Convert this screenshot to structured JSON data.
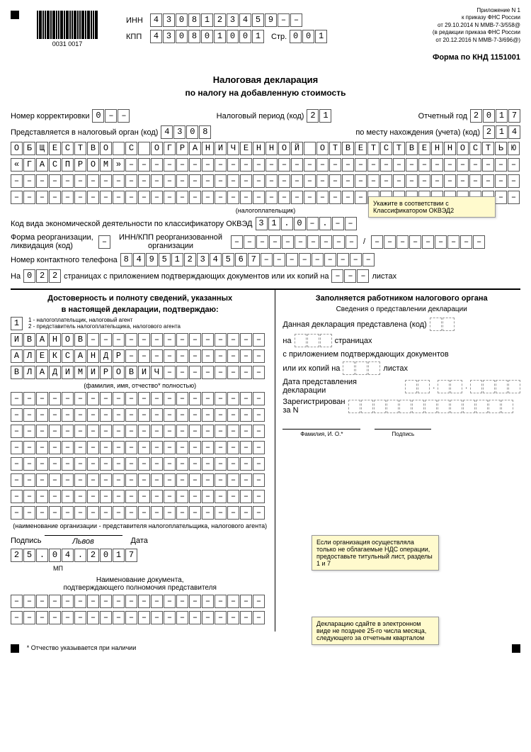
{
  "header": {
    "barcode_text": "0031  0017",
    "inn_label": "ИНН",
    "inn": [
      "4",
      "3",
      "0",
      "8",
      "1",
      "2",
      "3",
      "4",
      "5",
      "9",
      "–",
      "–"
    ],
    "kpp_label": "КПП",
    "kpp": [
      "4",
      "3",
      "0",
      "8",
      "0",
      "1",
      "0",
      "0",
      "1"
    ],
    "str_label": "Стр.",
    "str": [
      "0",
      "0",
      "1"
    ],
    "appendix": "Приложение N 1",
    "order1": "к приказу ФНС России",
    "order2": "от 29.10.2014 N ММВ-7-3/558@",
    "order3": "(в редакции приказа ФНС России",
    "order4": "от 20.12.2016 N ММВ-7-3/696@)"
  },
  "form_code": "Форма по КНД 1151001",
  "title": "Налоговая декларация",
  "subtitle": "по налогу на добавленную стоимость",
  "fields": {
    "correction_label": "Номер корректировки",
    "correction": [
      "0",
      "–",
      "–"
    ],
    "period_label": "Налоговый период (код)",
    "period": [
      "2",
      "1"
    ],
    "year_label": "Отчетный год",
    "year": [
      "2",
      "0",
      "1",
      "7"
    ],
    "organ_label": "Представляется в налоговый орган (код)",
    "organ": [
      "4",
      "3",
      "0",
      "8"
    ],
    "place_label": "по месту нахождения (учета) (код)",
    "place": [
      "2",
      "1",
      "4"
    ],
    "org_line1": [
      "О",
      "Б",
      "Щ",
      "Е",
      "С",
      "Т",
      "В",
      "О",
      "",
      "С",
      "",
      "О",
      "Г",
      "Р",
      "А",
      "Н",
      "И",
      "Ч",
      "Е",
      "Н",
      "Н",
      "О",
      "Й",
      "",
      "О",
      "Т",
      "В",
      "Е",
      "Т",
      "С",
      "Т",
      "В",
      "Е",
      "Н",
      "Н",
      "О",
      "С",
      "Т",
      "Ь",
      "Ю"
    ],
    "org_line2": [
      "«",
      "Г",
      "А",
      "С",
      "П",
      "Р",
      "О",
      "М",
      "»",
      "–",
      "–",
      "–",
      "–",
      "–",
      "–",
      "–",
      "–",
      "–",
      "–",
      "–",
      "–",
      "–",
      "–",
      "–",
      "–",
      "–",
      "–",
      "–",
      "–",
      "–",
      "–",
      "–",
      "–",
      "–",
      "–",
      "–",
      "–",
      "–",
      "–",
      "–"
    ],
    "org_line3_dash": 40,
    "org_line4_dash": 40,
    "taxpayer_note": "(налогоплательщик)",
    "okved_label": "Код вида экономической деятельности по классификатору ОКВЭД",
    "okved": [
      "3",
      "1",
      ".",
      "0",
      "–",
      ".",
      "–",
      "–"
    ],
    "reorg_label": "Форма реорганизации,\nликвидация (код)",
    "reorg": [
      "–"
    ],
    "reorg_inn_label": "ИНН/КПП реорганизованной\nорганизации",
    "reorg_inn": 10,
    "reorg_kpp": 9,
    "phone_label": "Номер контактного телефона",
    "phone": [
      "8",
      "4",
      "9",
      "5",
      "1",
      "2",
      "3",
      "4",
      "5",
      "6",
      "7",
      "–",
      "–",
      "–",
      "–",
      "–",
      "–",
      "–",
      "–",
      "–"
    ],
    "pages_label1": "На",
    "pages": [
      "0",
      "2",
      "2"
    ],
    "pages_label2": "страницах с приложением подтверждающих документов или их копий на",
    "pages_copies": [
      "–",
      "–",
      "–"
    ],
    "pages_label3": "листах"
  },
  "left": {
    "title1": "Достоверность и полноту сведений, указанных",
    "title2": "в настоящей декларации, подтверждаю:",
    "confirm": [
      "1"
    ],
    "confirm_note1": "1 - налогоплательщик, налоговый агент",
    "confirm_note2": "2 - представитель налогоплательщика, налогового агента",
    "surname": [
      "И",
      "В",
      "А",
      "Н",
      "О",
      "В",
      "–",
      "–",
      "–",
      "–",
      "–",
      "–",
      "–",
      "–",
      "–",
      "–",
      "–",
      "–",
      "–",
      "–"
    ],
    "name": [
      "А",
      "Л",
      "Е",
      "К",
      "С",
      "А",
      "Н",
      "Д",
      "Р",
      "–",
      "–",
      "–",
      "–",
      "–",
      "–",
      "–",
      "–",
      "–",
      "–",
      "–"
    ],
    "patronymic": [
      "В",
      "Л",
      "А",
      "Д",
      "И",
      "М",
      "И",
      "Р",
      "О",
      "В",
      "И",
      "Ч",
      "–",
      "–",
      "–",
      "–",
      "–",
      "–",
      "–",
      "–"
    ],
    "fio_note": "(фамилия, имя, отчество* полностью)",
    "repr_note": "(наименование организации - представителя налогоплательщика, налогового агента)",
    "sig_label": "Подпись",
    "sig_value": "Львов",
    "date_label": "Дата",
    "date": [
      "2",
      "5",
      ".",
      "0",
      "4",
      ".",
      "2",
      "0",
      "1",
      "7"
    ],
    "mp": "МП",
    "doc_title": "Наименование документа,",
    "doc_subtitle": "подтверждающего полномочия представителя"
  },
  "right": {
    "title": "Заполняется работником налогового органа",
    "subtitle": "Сведения о представлении декларации",
    "submitted_label": "Данная декларация представлена (код)",
    "on_label": "на",
    "pages_label": "страницах",
    "attach_label": "с приложением подтверждающих документов",
    "copies_label": "или их копий на",
    "sheets_label": "листах",
    "date_label": "Дата представления\nдекларации",
    "reg_label": "Зарегистрирован\nза N",
    "fio_label": "Фамилия, И. О.*",
    "sig_label": "Подпись"
  },
  "callouts": {
    "c1": "Укажите в соответствии с Классификатором ОКВЭД2",
    "c2": "Если организация осуществляла только не облагаемые НДС операции, предоставьте титульный лист, разделы 1 и 7",
    "c3": "Декларацию сдайте в электронном виде не позднее 25-го числа месяца, следующего за отчетным кварталом"
  },
  "footer": "* Отчество указывается при наличии"
}
